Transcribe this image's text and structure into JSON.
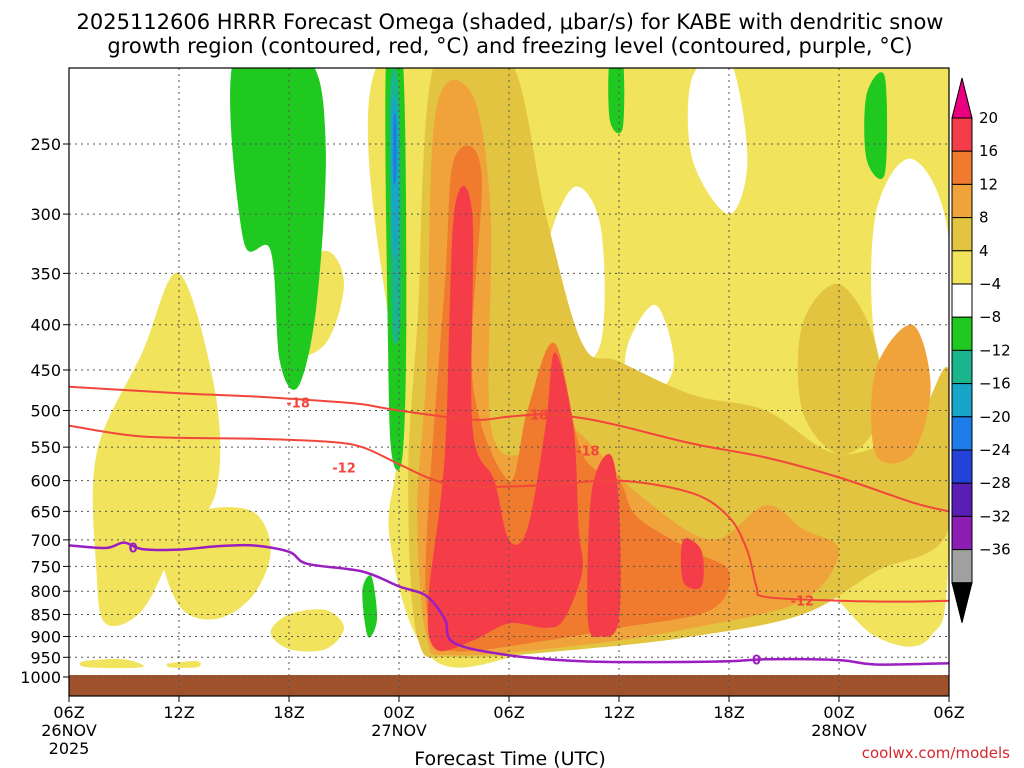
{
  "chart_data": {
    "type": "heatmap",
    "title_line1": "2025112606 HRRR Forecast Omega (shaded, μbar/s) for KABE with dendritic snow",
    "title_line2": "growth region (contoured, red, °C) and freezing level (contoured, purple, °C)",
    "xlabel": "Forecast Time (UTC)",
    "ylabel": "",
    "y_scale": "log-pressure",
    "y_range_hpa": [
      1035,
      200
    ],
    "x_range_hours_from_26nov06z": [
      0,
      48
    ],
    "x_ticks": [
      {
        "h": 0,
        "line1": "06Z",
        "line2": "26NOV",
        "line3": "2025"
      },
      {
        "h": 6,
        "line1": "12Z",
        "line2": "",
        "line3": ""
      },
      {
        "h": 12,
        "line1": "18Z",
        "line2": "",
        "line3": ""
      },
      {
        "h": 18,
        "line1": "00Z",
        "line2": "27NOV",
        "line3": ""
      },
      {
        "h": 24,
        "line1": "06Z",
        "line2": "",
        "line3": ""
      },
      {
        "h": 30,
        "line1": "12Z",
        "line2": "",
        "line3": ""
      },
      {
        "h": 36,
        "line1": "18Z",
        "line2": "",
        "line3": ""
      },
      {
        "h": 42,
        "line1": "00Z",
        "line2": "28NOV",
        "line3": ""
      },
      {
        "h": 48,
        "line1": "06Z",
        "line2": "",
        "line3": ""
      }
    ],
    "y_ticks": [
      250,
      300,
      350,
      400,
      450,
      500,
      550,
      600,
      650,
      700,
      750,
      800,
      850,
      900,
      950,
      1000
    ],
    "colorbar": {
      "labels": [
        "20",
        "16",
        "12",
        "8",
        "4",
        "−4",
        "−8",
        "−12",
        "−16",
        "−20",
        "−24",
        "−28",
        "−32",
        "−36"
      ],
      "colors": [
        "#e8007e",
        "#f43d48",
        "#f07a2e",
        "#f0a33a",
        "#e2c440",
        "#f1e35b",
        "#ffffff",
        "#1fc91f",
        "#1bb58d",
        "#18a6c8",
        "#1e7ce8",
        "#2242d8",
        "#5a1eb4",
        "#8c1eb4",
        "#a0a0a0",
        "#000000"
      ]
    },
    "omega_regions": [
      {
        "level": "4-8",
        "h0": 0.5,
        "h1": 48,
        "p_top": 200,
        "p_bot": 960
      },
      {
        "level": "8-12",
        "h0": 18.5,
        "h1": 48,
        "p_top": 200,
        "p_bot": 960
      },
      {
        "level": "12-16",
        "h0": 19,
        "h1": 30,
        "p_top": 200,
        "p_bot": 950
      },
      {
        "level": "16-20",
        "h0": 19.5,
        "h1": 29,
        "p_top": 260,
        "p_bot": 940
      },
      {
        "level": ">20",
        "h0": 19.5,
        "h1": 28,
        "p_top": 270,
        "p_bot": 930
      },
      {
        "level": "-8 to -4",
        "h0": 9,
        "h1": 14,
        "p_top": 200,
        "p_bot": 480
      },
      {
        "level": "-12 to -8",
        "h0": 17.3,
        "h1": 18.3,
        "p_top": 200,
        "p_bot": 560
      }
    ],
    "dgz_contours": [
      {
        "label": "-18",
        "points": [
          [
            0,
            470
          ],
          [
            6,
            478
          ],
          [
            10,
            482
          ],
          [
            14,
            488
          ],
          [
            16,
            492
          ],
          [
            18,
            500
          ],
          [
            22,
            512
          ],
          [
            24,
            508
          ],
          [
            26,
            505
          ],
          [
            28,
            510
          ],
          [
            30,
            520
          ],
          [
            34,
            545
          ],
          [
            38,
            565
          ],
          [
            42,
            595
          ],
          [
            46,
            635
          ],
          [
            48,
            650
          ]
        ]
      },
      {
        "label": "-12",
        "points": [
          [
            0,
            520
          ],
          [
            4,
            535
          ],
          [
            10,
            538
          ],
          [
            14,
            542
          ],
          [
            16,
            550
          ],
          [
            18,
            575
          ],
          [
            20,
            600
          ],
          [
            22,
            610
          ],
          [
            26,
            607
          ],
          [
            30,
            600
          ],
          [
            34,
            620
          ],
          [
            36,
            660
          ],
          [
            37,
            720
          ],
          [
            37.5,
            790
          ],
          [
            38,
            812
          ],
          [
            42,
            820
          ],
          [
            46,
            822
          ],
          [
            48,
            820
          ]
        ]
      }
    ],
    "freezing_level": {
      "label": "0",
      "points": [
        [
          0,
          710
        ],
        [
          2,
          715
        ],
        [
          3,
          705
        ],
        [
          4,
          717
        ],
        [
          6,
          718
        ],
        [
          8,
          712
        ],
        [
          10,
          710
        ],
        [
          12,
          722
        ],
        [
          13,
          745
        ],
        [
          16,
          760
        ],
        [
          18,
          790
        ],
        [
          19.5,
          810
        ],
        [
          20.5,
          860
        ],
        [
          21,
          915
        ],
        [
          24,
          945
        ],
        [
          28,
          960
        ],
        [
          32,
          962
        ],
        [
          36,
          960
        ],
        [
          38,
          955
        ],
        [
          42,
          957
        ],
        [
          44,
          968
        ],
        [
          48,
          965
        ]
      ]
    },
    "credit": "coolwx.com/models"
  }
}
